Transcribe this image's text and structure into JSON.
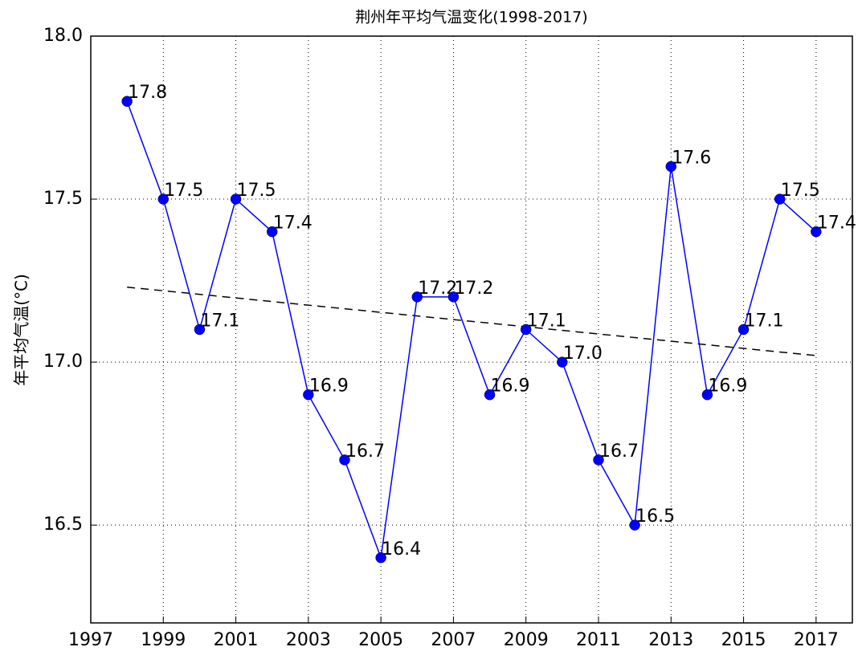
{
  "chart_data": {
    "type": "line",
    "title": "荆州年平均气温变化(1998-2017)",
    "ylabel": "年平均气温(°C)",
    "x": [
      1998,
      1999,
      2000,
      2001,
      2002,
      2003,
      2004,
      2005,
      2006,
      2007,
      2008,
      2009,
      2010,
      2011,
      2012,
      2013,
      2014,
      2015,
      2016,
      2017
    ],
    "series": [
      {
        "color": "#0000ff",
        "values": [
          17.8,
          17.5,
          17.1,
          17.5,
          17.4,
          16.9,
          16.7,
          16.4,
          17.2,
          17.2,
          16.9,
          17.1,
          17.0,
          16.7,
          16.5,
          17.6,
          16.9,
          17.1,
          17.5,
          17.4
        ],
        "value_labels": [
          "17.8",
          "17.5",
          "17.1",
          "17.5",
          "17.4",
          "16.9",
          "16.7",
          "16.4",
          "17.2",
          "17.2",
          "16.9",
          "17.1",
          "17.0",
          "16.7",
          "16.5",
          "17.6",
          "16.9",
          "17.1",
          "17.5",
          "17.4"
        ]
      }
    ],
    "trend": {
      "x": [
        1998,
        2017
      ],
      "values": [
        17.23,
        17.02
      ],
      "color": "#000000"
    },
    "xlim": [
      1997,
      2018
    ],
    "ylim": [
      16.2,
      18.0
    ],
    "xticks": [
      1997,
      1999,
      2001,
      2003,
      2005,
      2007,
      2009,
      2011,
      2013,
      2015,
      2017
    ],
    "yticks": [
      16.5,
      {
        "value": 17,
        "label": "17.0"
      },
      17.5,
      {
        "value": 18,
        "label": "18.0"
      }
    ],
    "grid": true
  }
}
